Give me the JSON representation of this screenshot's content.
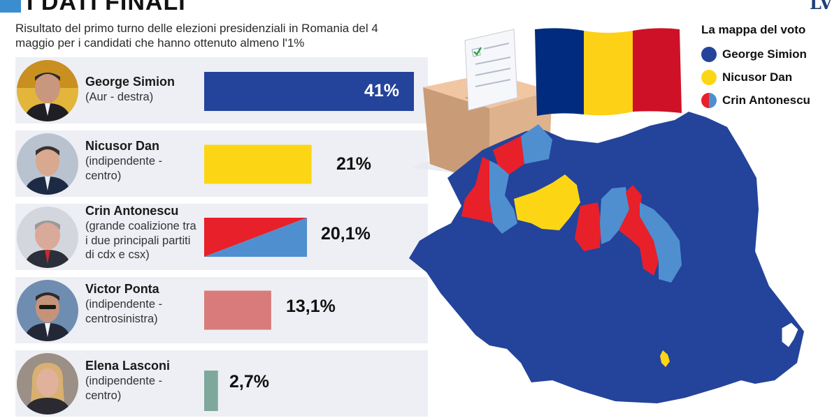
{
  "header": {
    "title": "I DATI FINALI",
    "subtitle": "Risultato del primo turno delle elezioni presidenziali in Romania del 4 maggio per i candidati che hanno ottenuto almeno l'1%",
    "logo": "LV"
  },
  "candidates": [
    {
      "name": "George Simion",
      "party": "(Aur - destra)",
      "value_label": "41%"
    },
    {
      "name": "Nicusor Dan",
      "party": "(indipendente - centro)",
      "value_label": "21%"
    },
    {
      "name": "Crin Antonescu",
      "party": "(grande coalizione tra i due principali partiti di cdx e csx)",
      "value_label": "20,1%"
    },
    {
      "name": "Victor Ponta",
      "party": "(indipendente - centrosinistra)",
      "value_label": "13,1%"
    },
    {
      "name": "Elena Lasconi",
      "party": "(indipendente - centro)",
      "value_label": "2,7%"
    }
  ],
  "chart_data": {
    "type": "bar",
    "orientation": "horizontal",
    "categories": [
      "George Simion",
      "Nicusor Dan",
      "Crin Antonescu",
      "Victor Ponta",
      "Elena Lasconi"
    ],
    "values": [
      41,
      21,
      20.1,
      13.1,
      2.7
    ],
    "unit": "%",
    "title": "I DATI FINALI",
    "colors": [
      "#24439b",
      "#fcd615",
      "split:#e8202a/#4f8fcf",
      "#d97b7b",
      "#7fa89d"
    ],
    "xlim": [
      0,
      41
    ]
  },
  "map": {
    "legend_title": "La mappa del voto",
    "legend": [
      {
        "label": "George Simion",
        "color": "#24439b"
      },
      {
        "label": "Nicusor Dan",
        "color": "#fcd615"
      },
      {
        "label": "Crin Antonescu",
        "color": "split:#e8202a/#4f8fcf"
      }
    ],
    "flag_colors": [
      "#002b7f",
      "#fcd116",
      "#ce1126"
    ],
    "region_colors": {
      "simion": "#24439b",
      "dan": "#fcd615",
      "antonescu_red": "#e8202a",
      "antonescu_blue": "#4f8fcf"
    }
  }
}
